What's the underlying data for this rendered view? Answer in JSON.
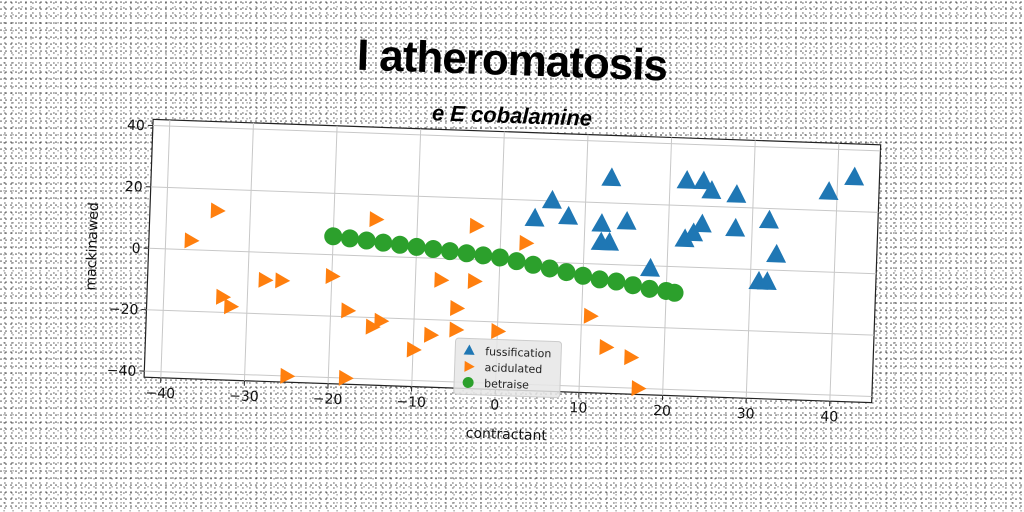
{
  "chart_data": {
    "type": "scatter",
    "title": "I atheromatosis",
    "subtitle": "e E cobalamine",
    "xlabel": "contractant",
    "ylabel": "mackinawed",
    "xlim": [
      -42,
      45
    ],
    "ylim": [
      -42,
      42
    ],
    "xticks": [
      -40,
      -30,
      -20,
      -10,
      0,
      10,
      20,
      30,
      40
    ],
    "yticks": [
      -40,
      -20,
      0,
      20,
      40
    ],
    "grid": true,
    "legend_position": "bottom-center",
    "series": [
      {
        "name": "fussification",
        "marker": "triangle-up",
        "color": "#1f77b4",
        "points": [
          [
            4,
            14
          ],
          [
            6,
            20
          ],
          [
            8,
            15
          ],
          [
            12,
            13
          ],
          [
            13,
            28
          ],
          [
            13,
            7
          ],
          [
            15,
            14
          ],
          [
            12,
            7
          ],
          [
            22,
            28
          ],
          [
            24,
            28
          ],
          [
            25,
            25
          ],
          [
            28,
            24
          ],
          [
            24,
            14
          ],
          [
            22,
            9
          ],
          [
            23,
            11
          ],
          [
            28,
            13
          ],
          [
            32,
            16
          ],
          [
            33,
            5
          ],
          [
            31,
            -4
          ],
          [
            32,
            -4
          ],
          [
            39,
            26
          ],
          [
            42,
            31
          ],
          [
            18,
            -1
          ]
        ]
      },
      {
        "name": "acidulated",
        "marker": "triangle-right",
        "color": "#ff7f0e",
        "points": [
          [
            -34,
            13
          ],
          [
            -37,
            3
          ],
          [
            -33,
            -15
          ],
          [
            -32,
            -18
          ],
          [
            -28,
            -9
          ],
          [
            -26,
            -9
          ],
          [
            -25,
            -40
          ],
          [
            -20,
            -7
          ],
          [
            -18,
            -18
          ],
          [
            -18,
            -40
          ],
          [
            -15,
            -23
          ],
          [
            -14,
            -21
          ],
          [
            -15,
            12
          ],
          [
            -10,
            -30
          ],
          [
            -8,
            -25
          ],
          [
            -7,
            -7
          ],
          [
            -5,
            -16
          ],
          [
            -5,
            -23
          ],
          [
            -3,
            -7
          ],
          [
            -3,
            11
          ],
          [
            0,
            -23
          ],
          [
            3,
            6
          ],
          [
            11,
            -17
          ],
          [
            13,
            -27
          ],
          [
            16,
            -30
          ],
          [
            17,
            -40
          ]
        ]
      },
      {
        "name": "betraise",
        "marker": "circle",
        "color": "#2ca02c",
        "points": [
          [
            -20,
            6
          ],
          [
            -18,
            5.5
          ],
          [
            -16,
            5
          ],
          [
            -14,
            4.5
          ],
          [
            -12,
            4
          ],
          [
            -10,
            3.5
          ],
          [
            -8,
            3
          ],
          [
            -6,
            2.5
          ],
          [
            -4,
            2
          ],
          [
            -2,
            1.5
          ],
          [
            0,
            1
          ],
          [
            2,
            0
          ],
          [
            4,
            -1
          ],
          [
            6,
            -2
          ],
          [
            8,
            -3
          ],
          [
            10,
            -4
          ],
          [
            12,
            -5
          ],
          [
            14,
            -5.5
          ],
          [
            16,
            -6.5
          ],
          [
            18,
            -7.5
          ],
          [
            20,
            -8
          ],
          [
            21,
            -8.5
          ]
        ]
      }
    ]
  }
}
